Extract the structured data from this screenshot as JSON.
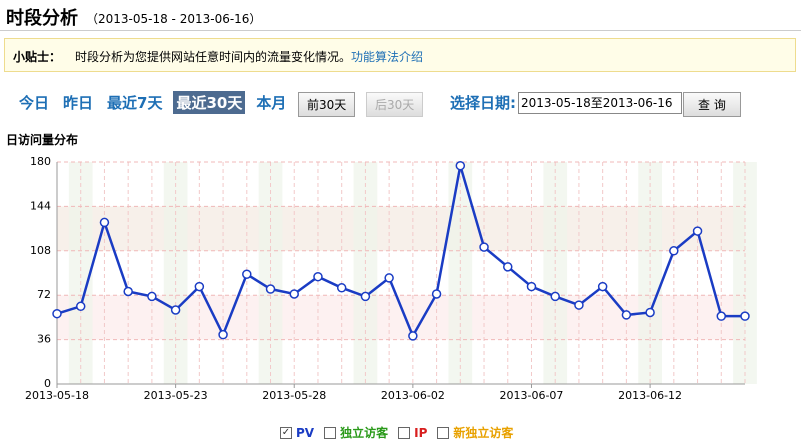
{
  "header": {
    "title": "时段分析",
    "date_range": "（2013-05-18 - 2013-06-16）"
  },
  "tip": {
    "label": "小贴士：",
    "text": "时段分析为您提供网站任意时间内的流量变化情况。",
    "link": "功能算法介绍"
  },
  "nav": {
    "quick_links": [
      "今日",
      "昨日",
      "最近7天",
      "最近30天",
      "本月"
    ],
    "prev": "前30天",
    "next": "后30天",
    "date_label": "选择日期:",
    "date_value": "2013-05-18至2013-06-16",
    "query": "查 询"
  },
  "legend_options": [
    {
      "name": "独立访客",
      "color": "#2a9a1a"
    },
    {
      "name": "IP",
      "color": "#d81e1e"
    },
    {
      "name": "新独立访客",
      "color": "#e8a100"
    }
  ],
  "chart_data": {
    "type": "line",
    "title": "日访问量分布",
    "categories": [
      "2013-05-18",
      null,
      null,
      null,
      null,
      "2013-05-23",
      null,
      null,
      null,
      null,
      "2013-05-28",
      null,
      null,
      null,
      null,
      "2013-06-02",
      null,
      null,
      null,
      null,
      "2013-06-07",
      null,
      null,
      null,
      null,
      "2013-06-12",
      null,
      null,
      null,
      null
    ],
    "series": [
      {
        "name": "PV",
        "color": "#1a3cc4",
        "values": [
          57,
          63,
          131,
          75,
          71,
          60,
          79,
          40,
          89,
          77,
          73,
          87,
          78,
          71,
          86,
          39,
          73,
          177,
          111,
          95,
          79,
          71,
          64,
          79,
          56,
          58,
          108,
          124,
          55,
          55
        ]
      }
    ],
    "ylim": [
      0,
      180
    ],
    "yticks": [
      0,
      36,
      72,
      108,
      144,
      180
    ],
    "grid": true
  }
}
